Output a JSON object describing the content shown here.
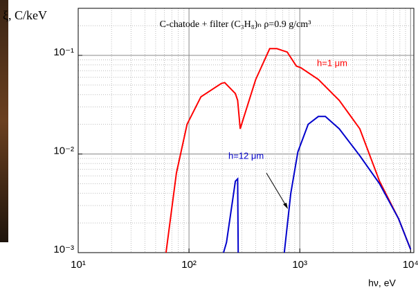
{
  "chart_data": {
    "type": "line",
    "title": "C-chatode + filter (C₃H₈)ₙ  ρ=0.9 g/cm³",
    "y_label": "ξ, C/keV",
    "x_label": "hν, eV",
    "xlog": true,
    "ylog": true,
    "grid": true,
    "xlim": [
      10,
      10700
    ],
    "ylim": [
      0.001,
      0.3
    ],
    "xticks": [
      {
        "value": 10,
        "label": "10¹"
      },
      {
        "value": 100,
        "label": "10²"
      },
      {
        "value": 1000,
        "label": "10³"
      },
      {
        "value": 10000,
        "label": "10⁴"
      }
    ],
    "yticks": [
      {
        "value": 0.001,
        "label": "10⁻³"
      },
      {
        "value": 0.01,
        "label": "10⁻²"
      },
      {
        "value": 0.1,
        "label": "10⁻¹"
      }
    ],
    "series": [
      {
        "name": "h=1 μm",
        "color": "#ff0000",
        "x": [
          62,
          77,
          96,
          128,
          196,
          210,
          262,
          275,
          290,
          310,
          400,
          535,
          620,
          770,
          930,
          1020,
          1470,
          2270,
          3480,
          5240,
          7800,
          10000
        ],
        "values": [
          0.001,
          0.0064,
          0.02,
          0.038,
          0.052,
          0.053,
          0.041,
          0.035,
          0.018,
          0.023,
          0.057,
          0.117,
          0.117,
          0.108,
          0.078,
          0.075,
          0.057,
          0.035,
          0.018,
          0.0053,
          0.0022,
          0.00108
        ]
      },
      {
        "name": "h=12 μm",
        "color": "#0000cc",
        "x": [
          205,
          218,
          262,
          275,
          278,
          null,
          725,
          830,
          960,
          1190,
          1470,
          1700,
          2270,
          3480,
          5240,
          7800,
          10000
        ],
        "values": [
          0.001,
          0.00127,
          0.0053,
          0.0056,
          0.001,
          null,
          0.001,
          0.004,
          0.0105,
          0.02,
          0.024,
          0.024,
          0.018,
          0.0096,
          0.005,
          0.0022,
          0.00108
        ]
      }
    ]
  }
}
